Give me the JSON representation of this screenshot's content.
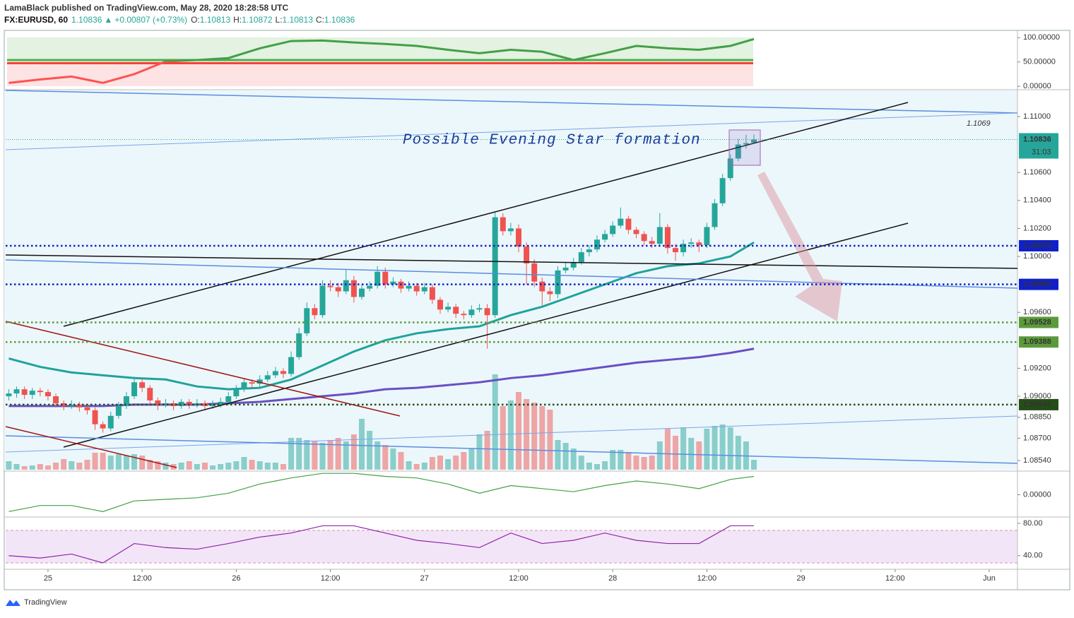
{
  "header": {
    "publisher": "LamaBlack published on TradingView.com, May 28, 2020 18:28:58 UTC",
    "symbol": "FX:EURUSD, 60",
    "last": "1.10836",
    "arrow": "▲",
    "change": "+0.00807 (+0.73%)",
    "o_label": "O:",
    "o": "1.10813",
    "h_label": "H:",
    "h": "1.10872",
    "l_label": "L:",
    "l": "1.10813",
    "c_label": "C:",
    "c": "1.10836"
  },
  "chart_data": [
    {
      "type": "candlestick",
      "xlim": [
        -0.4,
        128.6
      ],
      "ylim": [
        1.08475,
        1.11187
      ],
      "xticks": [
        {
          "value": 5,
          "label": "25"
        },
        {
          "value": 17,
          "label": "12:00"
        },
        {
          "value": 29,
          "label": "26"
        },
        {
          "value": 41,
          "label": "12:00"
        },
        {
          "value": 53,
          "label": "27"
        },
        {
          "value": 65,
          "label": "12:00"
        },
        {
          "value": 77,
          "label": "28"
        },
        {
          "value": 89,
          "label": "12:00"
        },
        {
          "value": 101,
          "label": "29"
        },
        {
          "value": 113,
          "label": "12:00"
        },
        {
          "value": 125,
          "label": "Jun"
        }
      ],
      "yticks": [
        {
          "value": 1.11,
          "label": "1.11000"
        },
        {
          "value": 1.106,
          "label": "1.10600"
        },
        {
          "value": 1.104,
          "label": "1.10400"
        },
        {
          "value": 1.102,
          "label": "1.10200"
        },
        {
          "value": 1.1,
          "label": "1.10000"
        },
        {
          "value": 1.096,
          "label": "1.09600"
        },
        {
          "value": 1.092,
          "label": "1.09200"
        },
        {
          "value": 1.09,
          "label": "1.09000"
        },
        {
          "value": 1.0885,
          "label": "1.08850"
        },
        {
          "value": 1.087,
          "label": "1.08700"
        },
        {
          "value": 1.0854,
          "label": "1.08540"
        }
      ],
      "up_color": "#26a69a",
      "down_color": "#ef5350",
      "candles": [
        [
          1.09,
          1.0905,
          1.0897,
          1.0902
        ],
        [
          1.0902,
          1.0907,
          1.0899,
          1.0905
        ],
        [
          1.0905,
          1.0907,
          1.0898,
          1.0901
        ],
        [
          1.0901,
          1.0906,
          1.0898,
          1.0904
        ],
        [
          1.0904,
          1.0906,
          1.09,
          1.0903
        ],
        [
          1.0903,
          1.0905,
          1.0897,
          1.09
        ],
        [
          1.09,
          1.0902,
          1.0892,
          1.0895
        ],
        [
          1.0895,
          1.0897,
          1.089,
          1.0893
        ],
        [
          1.0893,
          1.0897,
          1.0891,
          1.0894
        ],
        [
          1.0894,
          1.0896,
          1.0889,
          1.0892
        ],
        [
          1.0892,
          1.0894,
          1.0887,
          1.089
        ],
        [
          1.089,
          1.0892,
          1.0876,
          1.088
        ],
        [
          1.088,
          1.0882,
          1.0874,
          1.0877
        ],
        [
          1.0877,
          1.0889,
          1.0875,
          1.0886
        ],
        [
          1.0886,
          1.0896,
          1.0884,
          1.0893
        ],
        [
          1.0893,
          1.0903,
          1.0891,
          1.09
        ],
        [
          1.09,
          1.0914,
          1.0898,
          1.091
        ],
        [
          1.091,
          1.0913,
          1.0903,
          1.0906
        ],
        [
          1.0906,
          1.0908,
          1.0894,
          1.0897
        ],
        [
          1.0897,
          1.0899,
          1.089,
          1.0894
        ],
        [
          1.0894,
          1.0898,
          1.0892,
          1.0895
        ],
        [
          1.0895,
          1.0897,
          1.089,
          1.0893
        ],
        [
          1.0893,
          1.0898,
          1.0891,
          1.0896
        ],
        [
          1.0896,
          1.0898,
          1.0891,
          1.0894
        ],
        [
          1.0894,
          1.0898,
          1.0892,
          1.0895
        ],
        [
          1.0895,
          1.0897,
          1.089,
          1.0893
        ],
        [
          1.0893,
          1.0897,
          1.0891,
          1.0894
        ],
        [
          1.0894,
          1.0899,
          1.0892,
          1.0896
        ],
        [
          1.0896,
          1.0903,
          1.0894,
          1.09
        ],
        [
          1.09,
          1.0908,
          1.0898,
          1.0905
        ],
        [
          1.0905,
          1.0913,
          1.0903,
          1.091
        ],
        [
          1.091,
          1.0912,
          1.0906,
          1.0909
        ],
        [
          1.0909,
          1.0915,
          1.0907,
          1.0912
        ],
        [
          1.0912,
          1.0918,
          1.091,
          1.0915
        ],
        [
          1.0915,
          1.0921,
          1.0913,
          1.0918
        ],
        [
          1.0918,
          1.092,
          1.0913,
          1.0916
        ],
        [
          1.0916,
          1.0932,
          1.0914,
          1.0928
        ],
        [
          1.0928,
          1.0949,
          1.0926,
          1.0945
        ],
        [
          1.0945,
          1.0967,
          1.0943,
          1.0963
        ],
        [
          1.0963,
          1.0966,
          1.0955,
          1.0958
        ],
        [
          1.0958,
          1.0983,
          1.0956,
          1.0979
        ],
        [
          1.0979,
          1.0983,
          1.0975,
          1.0978
        ],
        [
          1.0978,
          1.0981,
          1.0971,
          1.0975
        ],
        [
          1.0975,
          1.0991,
          1.0973,
          1.0983
        ],
        [
          1.0983,
          1.0986,
          1.0967,
          1.0971
        ],
        [
          1.0971,
          1.098,
          1.0969,
          1.0977
        ],
        [
          1.0977,
          1.0982,
          1.0975,
          1.0979
        ],
        [
          1.0979,
          1.0993,
          1.0977,
          1.0989
        ],
        [
          1.0989,
          1.0992,
          1.0977,
          1.098
        ],
        [
          1.098,
          1.0985,
          1.0978,
          1.0982
        ],
        [
          1.0982,
          1.0984,
          1.0974,
          1.0977
        ],
        [
          1.0977,
          1.0982,
          1.0975,
          1.0979
        ],
        [
          1.0979,
          1.0981,
          1.0972,
          1.0975
        ],
        [
          1.0975,
          1.0981,
          1.0973,
          1.0978
        ],
        [
          1.0978,
          1.098,
          1.0966,
          1.0969
        ],
        [
          1.0969,
          1.0971,
          1.0959,
          1.0962
        ],
        [
          1.0962,
          1.0967,
          1.096,
          1.0964
        ],
        [
          1.0964,
          1.0966,
          1.0956,
          1.0959
        ],
        [
          1.0959,
          1.0961,
          1.0955,
          1.0958
        ],
        [
          1.0958,
          1.0965,
          1.0956,
          1.0962
        ],
        [
          1.0962,
          1.0966,
          1.096,
          1.0963
        ],
        [
          1.0963,
          1.0966,
          1.0934,
          1.0958
        ],
        [
          1.0958,
          1.1032,
          1.0956,
          1.1028
        ],
        [
          1.1028,
          1.1031,
          1.1015,
          1.1018
        ],
        [
          1.1018,
          1.1024,
          1.1015,
          1.102
        ],
        [
          1.102,
          1.1023,
          1.1003,
          1.1007
        ],
        [
          1.1007,
          1.101,
          1.098,
          1.0995
        ],
        [
          1.0995,
          1.0998,
          1.0978,
          1.0982
        ],
        [
          1.0982,
          1.0985,
          1.0965,
          1.0975
        ],
        [
          1.0975,
          1.0978,
          1.0968,
          1.0973
        ],
        [
          1.0973,
          1.0993,
          1.097,
          1.099
        ],
        [
          1.099,
          1.0996,
          1.0988,
          1.0992
        ],
        [
          1.0992,
          1.0999,
          1.099,
          1.0996
        ],
        [
          1.0996,
          1.1006,
          1.0994,
          1.1003
        ],
        [
          1.1003,
          1.1008,
          1.1,
          1.1005
        ],
        [
          1.1005,
          1.1015,
          1.1003,
          1.1012
        ],
        [
          1.1012,
          1.1019,
          1.101,
          1.1016
        ],
        [
          1.1016,
          1.1025,
          1.1014,
          1.1022
        ],
        [
          1.1022,
          1.1035,
          1.102,
          1.1027
        ],
        [
          1.1027,
          1.1029,
          1.1016,
          1.1019
        ],
        [
          1.1019,
          1.1021,
          1.1013,
          1.1016
        ],
        [
          1.1016,
          1.1018,
          1.1008,
          1.1011
        ],
        [
          1.1011,
          1.1014,
          1.1006,
          1.1009
        ],
        [
          1.1009,
          1.1031,
          1.1007,
          1.1021
        ],
        [
          1.1021,
          1.1023,
          1.1002,
          1.1006
        ],
        [
          1.1006,
          1.1009,
          1.0997,
          1.1003
        ],
        [
          1.1003,
          1.1012,
          1.1,
          1.1009
        ],
        [
          1.1009,
          1.1013,
          1.1006,
          1.101
        ],
        [
          1.101,
          1.1012,
          1.1003,
          1.1008
        ],
        [
          1.1008,
          1.1024,
          1.1006,
          1.1021
        ],
        [
          1.1021,
          1.1041,
          1.1019,
          1.1038
        ],
        [
          1.1038,
          1.1059,
          1.1036,
          1.1056
        ],
        [
          1.1056,
          1.1073,
          1.1054,
          1.107
        ],
        [
          1.107,
          1.1084,
          1.1068,
          1.108
        ],
        [
          1.108,
          1.1087,
          1.1077,
          1.1081
        ],
        [
          1.10813,
          1.10872,
          1.10813,
          1.10836
        ]
      ],
      "volume": [
        12,
        8,
        5,
        6,
        8,
        6,
        10,
        15,
        12,
        10,
        14,
        24,
        24,
        20,
        22,
        20,
        22,
        20,
        14,
        12,
        10,
        8,
        10,
        12,
        8,
        10,
        6,
        8,
        10,
        12,
        18,
        14,
        12,
        10,
        10,
        8,
        45,
        45,
        42,
        40,
        38,
        42,
        45,
        40,
        50,
        72,
        55,
        40,
        35,
        30,
        25,
        12,
        8,
        10,
        18,
        20,
        15,
        20,
        25,
        30,
        50,
        55,
        135,
        90,
        98,
        110,
        100,
        95,
        90,
        85,
        42,
        38,
        30,
        20,
        10,
        8,
        12,
        28,
        28,
        25,
        20,
        18,
        20,
        40,
        58,
        48,
        60,
        45,
        40,
        58,
        62,
        64,
        60,
        48,
        40,
        14
      ],
      "moving_averages": [
        {
          "color": "#1fa39a",
          "x": [
            0,
            4,
            8,
            12,
            16,
            20,
            24,
            28,
            32,
            36,
            40,
            44,
            48,
            52,
            56,
            60,
            64,
            68,
            72,
            76,
            80,
            84,
            88,
            92,
            95
          ],
          "values": [
            1.0927,
            1.0921,
            1.0917,
            1.0915,
            1.0913,
            1.0912,
            1.0907,
            1.0905,
            1.0906,
            1.0912,
            1.0922,
            1.0932,
            1.094,
            1.0945,
            1.0948,
            1.095,
            1.0958,
            1.0964,
            1.0972,
            1.098,
            1.0988,
            1.0993,
            1.0995,
            1.1,
            1.101
          ]
        },
        {
          "color": "#6a4fc4",
          "x": [
            0,
            4,
            8,
            12,
            16,
            20,
            24,
            28,
            32,
            36,
            40,
            44,
            48,
            52,
            56,
            60,
            64,
            68,
            72,
            76,
            80,
            84,
            88,
            92,
            95
          ],
          "values": [
            1.0893,
            1.0893,
            1.0893,
            1.0893,
            1.0894,
            1.0894,
            1.0894,
            1.0895,
            1.0896,
            1.0898,
            1.09,
            1.0902,
            1.0905,
            1.0906,
            1.0908,
            1.091,
            1.0913,
            1.0915,
            1.0918,
            1.0921,
            1.0924,
            1.0926,
            1.0928,
            1.0931,
            1.0934
          ]
        }
      ],
      "levels": [
        {
          "value": 1.10076,
          "label": "1.10076",
          "color": "#1020c8"
        },
        {
          "value": 1.098,
          "label": "1.09800",
          "color": "#1020c8"
        },
        {
          "value": 1.09528,
          "label": "1.09528",
          "color": "#5b9a3a"
        },
        {
          "value": 1.09388,
          "label": "1.09388",
          "color": "#5b9a3a"
        },
        {
          "value": 1.0894,
          "label": "1.08940",
          "color": "#254d18"
        }
      ],
      "price_label": {
        "value": 1.10836,
        "label": "1.10836",
        "color": "#26a69a"
      },
      "countdown": "31:03",
      "annotation": "Possible Evening Star formation",
      "note_label": "1.1069"
    },
    {
      "type": "line",
      "xlim": [
        -0.4,
        128.6
      ],
      "ylim": [
        -7,
        112
      ],
      "threshold": 50,
      "color": "#43a047",
      "color_below": "#ff5252",
      "yticks": [
        {
          "value": 100,
          "label": "100.00000"
        },
        {
          "value": 50,
          "label": "50.00000"
        },
        {
          "value": 0,
          "label": "0.00000"
        }
      ],
      "x": [
        0,
        4,
        8,
        12,
        16,
        20,
        24,
        28,
        32,
        36,
        40,
        44,
        48,
        52,
        56,
        60,
        64,
        68,
        72,
        76,
        80,
        84,
        88,
        92,
        95
      ],
      "values": [
        7,
        14,
        20,
        7,
        25,
        51,
        54,
        58,
        78,
        93,
        94,
        90,
        87,
        83,
        75,
        68,
        75,
        71,
        54,
        68,
        83,
        78,
        75,
        83,
        97
      ]
    },
    {
      "type": "line",
      "xlim": [
        -0.4,
        128.6
      ],
      "ylim": [
        -0.0015,
        0.0015
      ],
      "color": "#43a047",
      "yticks": [
        {
          "value": 0,
          "label": "0.00000"
        }
      ],
      "x": [
        0,
        4,
        8,
        12,
        16,
        20,
        24,
        28,
        32,
        36,
        40,
        44,
        48,
        52,
        56,
        60,
        64,
        68,
        72,
        76,
        80,
        84,
        88,
        92,
        95
      ],
      "values": [
        -0.0011,
        -0.0007,
        -0.0007,
        -0.0011,
        -0.0004,
        -0.0003,
        -0.0002,
        0.0001,
        0.0007,
        0.0011,
        0.0014,
        0.0014,
        0.0012,
        0.0011,
        0.0007,
        0.0001,
        0.0006,
        0.0004,
        0.0002,
        0.0006,
        0.0009,
        0.0007,
        0.0004,
        0.001,
        0.0012
      ]
    },
    {
      "type": "line",
      "xlim": [
        -0.4,
        128.6
      ],
      "ylim": [
        24,
        87
      ],
      "color": "#8e24aa",
      "yticks": [
        {
          "value": 80,
          "label": "80.00"
        },
        {
          "value": 40,
          "label": "40.00"
        }
      ],
      "x": [
        0,
        4,
        8,
        12,
        16,
        20,
        24,
        28,
        32,
        36,
        40,
        44,
        48,
        52,
        56,
        60,
        64,
        68,
        72,
        76,
        80,
        84,
        88,
        92,
        95
      ],
      "values": [
        40,
        37,
        42,
        31,
        55,
        50,
        48,
        55,
        63,
        68,
        77,
        77,
        68,
        59,
        55,
        50,
        68,
        55,
        59,
        68,
        59,
        55,
        55,
        77,
        77
      ]
    }
  ],
  "footer": {
    "brand": "TradingView"
  }
}
